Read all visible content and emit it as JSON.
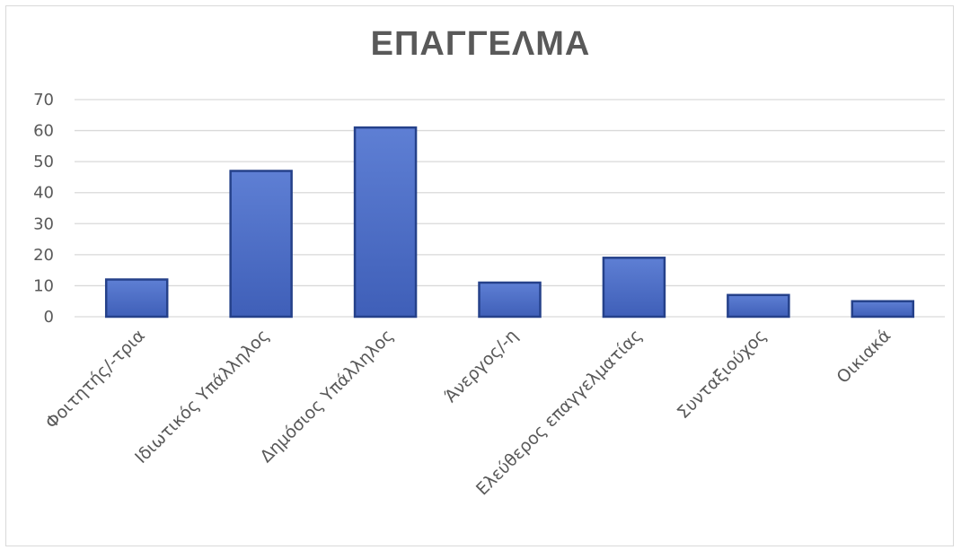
{
  "chart_data": {
    "type": "bar",
    "title": "ΕΠΑΓΓΕΛΜΑ",
    "categories": [
      "Φοιτητής/-τρια",
      "Ιδιωτικός Υπάλληλος",
      "Δημόσιος Υπάλληλος",
      "Άνεργος/-η",
      "Ελεύθερος επαγγελματίας",
      "Συνταξιούχος",
      "Οικιακά"
    ],
    "values": [
      12,
      47,
      61,
      11,
      19,
      7,
      5
    ],
    "y_ticks": [
      "0",
      "10",
      "20",
      "30",
      "40",
      "50",
      "60",
      "70"
    ],
    "ylim": [
      0,
      70
    ],
    "grid": true,
    "legend": "none",
    "xlabel": "",
    "ylabel": "",
    "colors": {
      "bar_fill": "#4a6cc4",
      "bar_edge": "#25418a",
      "gridline": "#d9d9d9",
      "text": "#595959"
    }
  }
}
